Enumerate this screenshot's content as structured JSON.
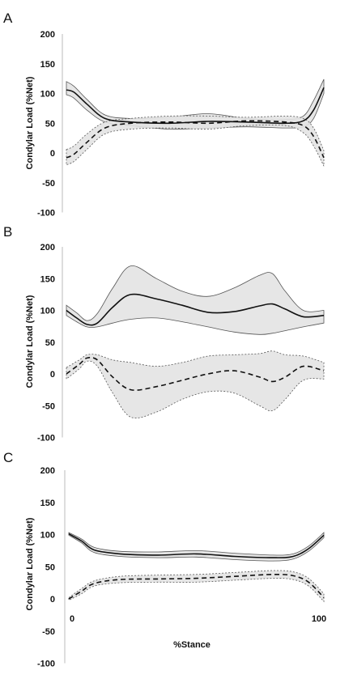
{
  "chart_data": [
    {
      "panel": "A",
      "type": "line",
      "ylabel": "Condylar Load (%Net)",
      "xlabel": "",
      "ylim": [
        -100,
        200
      ],
      "yticks": [
        200,
        150,
        100,
        50,
        0,
        -50,
        -100
      ],
      "xticks": [],
      "xlim": [
        0,
        100
      ],
      "series": [
        {
          "style": "solid",
          "x": [
            0,
            3,
            8,
            15,
            25,
            40,
            55,
            70,
            85,
            92,
            96,
            100
          ],
          "mean": [
            106,
            102,
            82,
            58,
            52,
            50,
            53,
            52,
            50,
            54,
            72,
            110
          ],
          "upper": [
            120,
            112,
            90,
            64,
            58,
            60,
            66,
            58,
            56,
            62,
            88,
            124
          ],
          "lower": [
            98,
            92,
            72,
            52,
            46,
            40,
            42,
            44,
            42,
            44,
            58,
            100
          ]
        },
        {
          "style": "dashed",
          "x": [
            0,
            3,
            8,
            15,
            25,
            40,
            55,
            70,
            85,
            92,
            96,
            100
          ],
          "mean": [
            -8,
            -2,
            18,
            42,
            50,
            52,
            50,
            54,
            52,
            46,
            28,
            -8
          ],
          "upper": [
            6,
            12,
            32,
            52,
            58,
            62,
            62,
            60,
            62,
            58,
            42,
            4
          ],
          "lower": [
            -20,
            -14,
            6,
            32,
            40,
            42,
            40,
            46,
            46,
            34,
            12,
            -22
          ]
        }
      ]
    },
    {
      "panel": "B",
      "type": "line",
      "ylabel": "Condylar Load (%Net)",
      "xlabel": "",
      "ylim": [
        -100,
        200
      ],
      "yticks": [
        200,
        150,
        100,
        50,
        0,
        -50,
        -100
      ],
      "xticks": [],
      "xlim": [
        0,
        100
      ],
      "series": [
        {
          "style": "solid",
          "x": [
            0,
            4,
            8,
            12,
            18,
            25,
            35,
            45,
            55,
            65,
            75,
            80,
            85,
            92,
            100
          ],
          "mean": [
            100,
            88,
            78,
            80,
            105,
            125,
            118,
            108,
            97,
            98,
            107,
            110,
            102,
            90,
            92
          ],
          "upper": [
            108,
            96,
            84,
            95,
            135,
            170,
            150,
            130,
            122,
            135,
            155,
            158,
            130,
            100,
            100
          ],
          "lower": [
            92,
            82,
            74,
            74,
            80,
            86,
            88,
            82,
            74,
            66,
            62,
            64,
            68,
            74,
            80
          ]
        },
        {
          "style": "dashed",
          "x": [
            0,
            5,
            8,
            12,
            18,
            25,
            35,
            45,
            55,
            65,
            75,
            80,
            85,
            92,
            100
          ],
          "mean": [
            0,
            15,
            25,
            22,
            -5,
            -25,
            -20,
            -10,
            0,
            5,
            -5,
            -12,
            -5,
            12,
            5
          ],
          "upper": [
            10,
            22,
            30,
            30,
            22,
            18,
            12,
            18,
            28,
            30,
            32,
            36,
            30,
            28,
            18
          ],
          "lower": [
            -8,
            8,
            20,
            12,
            -30,
            -68,
            -60,
            -40,
            -28,
            -30,
            -50,
            -58,
            -40,
            -10,
            -8
          ]
        }
      ]
    },
    {
      "panel": "C",
      "type": "line",
      "ylabel": "Condylar Load (%Net)",
      "xlabel": "%Stance",
      "ylim": [
        -100,
        200
      ],
      "yticks": [
        200,
        150,
        100,
        50,
        0,
        -50,
        -100
      ],
      "xticks": [
        0,
        100
      ],
      "xlim": [
        0,
        100
      ],
      "series": [
        {
          "style": "solid",
          "x": [
            0,
            5,
            10,
            20,
            35,
            50,
            65,
            80,
            88,
            94,
            100
          ],
          "mean": [
            101,
            90,
            76,
            70,
            68,
            70,
            66,
            64,
            66,
            78,
            99
          ],
          "upper": [
            103,
            93,
            80,
            74,
            73,
            75,
            71,
            68,
            70,
            82,
            103
          ],
          "lower": [
            99,
            87,
            72,
            66,
            64,
            65,
            61,
            59,
            62,
            74,
            95
          ]
        },
        {
          "style": "dashed",
          "x": [
            0,
            5,
            10,
            20,
            35,
            50,
            65,
            80,
            88,
            94,
            100
          ],
          "mean": [
            0,
            12,
            24,
            30,
            31,
            32,
            35,
            38,
            36,
            26,
            2
          ],
          "upper": [
            2,
            16,
            28,
            35,
            37,
            38,
            41,
            44,
            42,
            32,
            8
          ],
          "lower": [
            -2,
            8,
            20,
            25,
            26,
            26,
            29,
            32,
            30,
            20,
            -4
          ]
        }
      ]
    }
  ]
}
